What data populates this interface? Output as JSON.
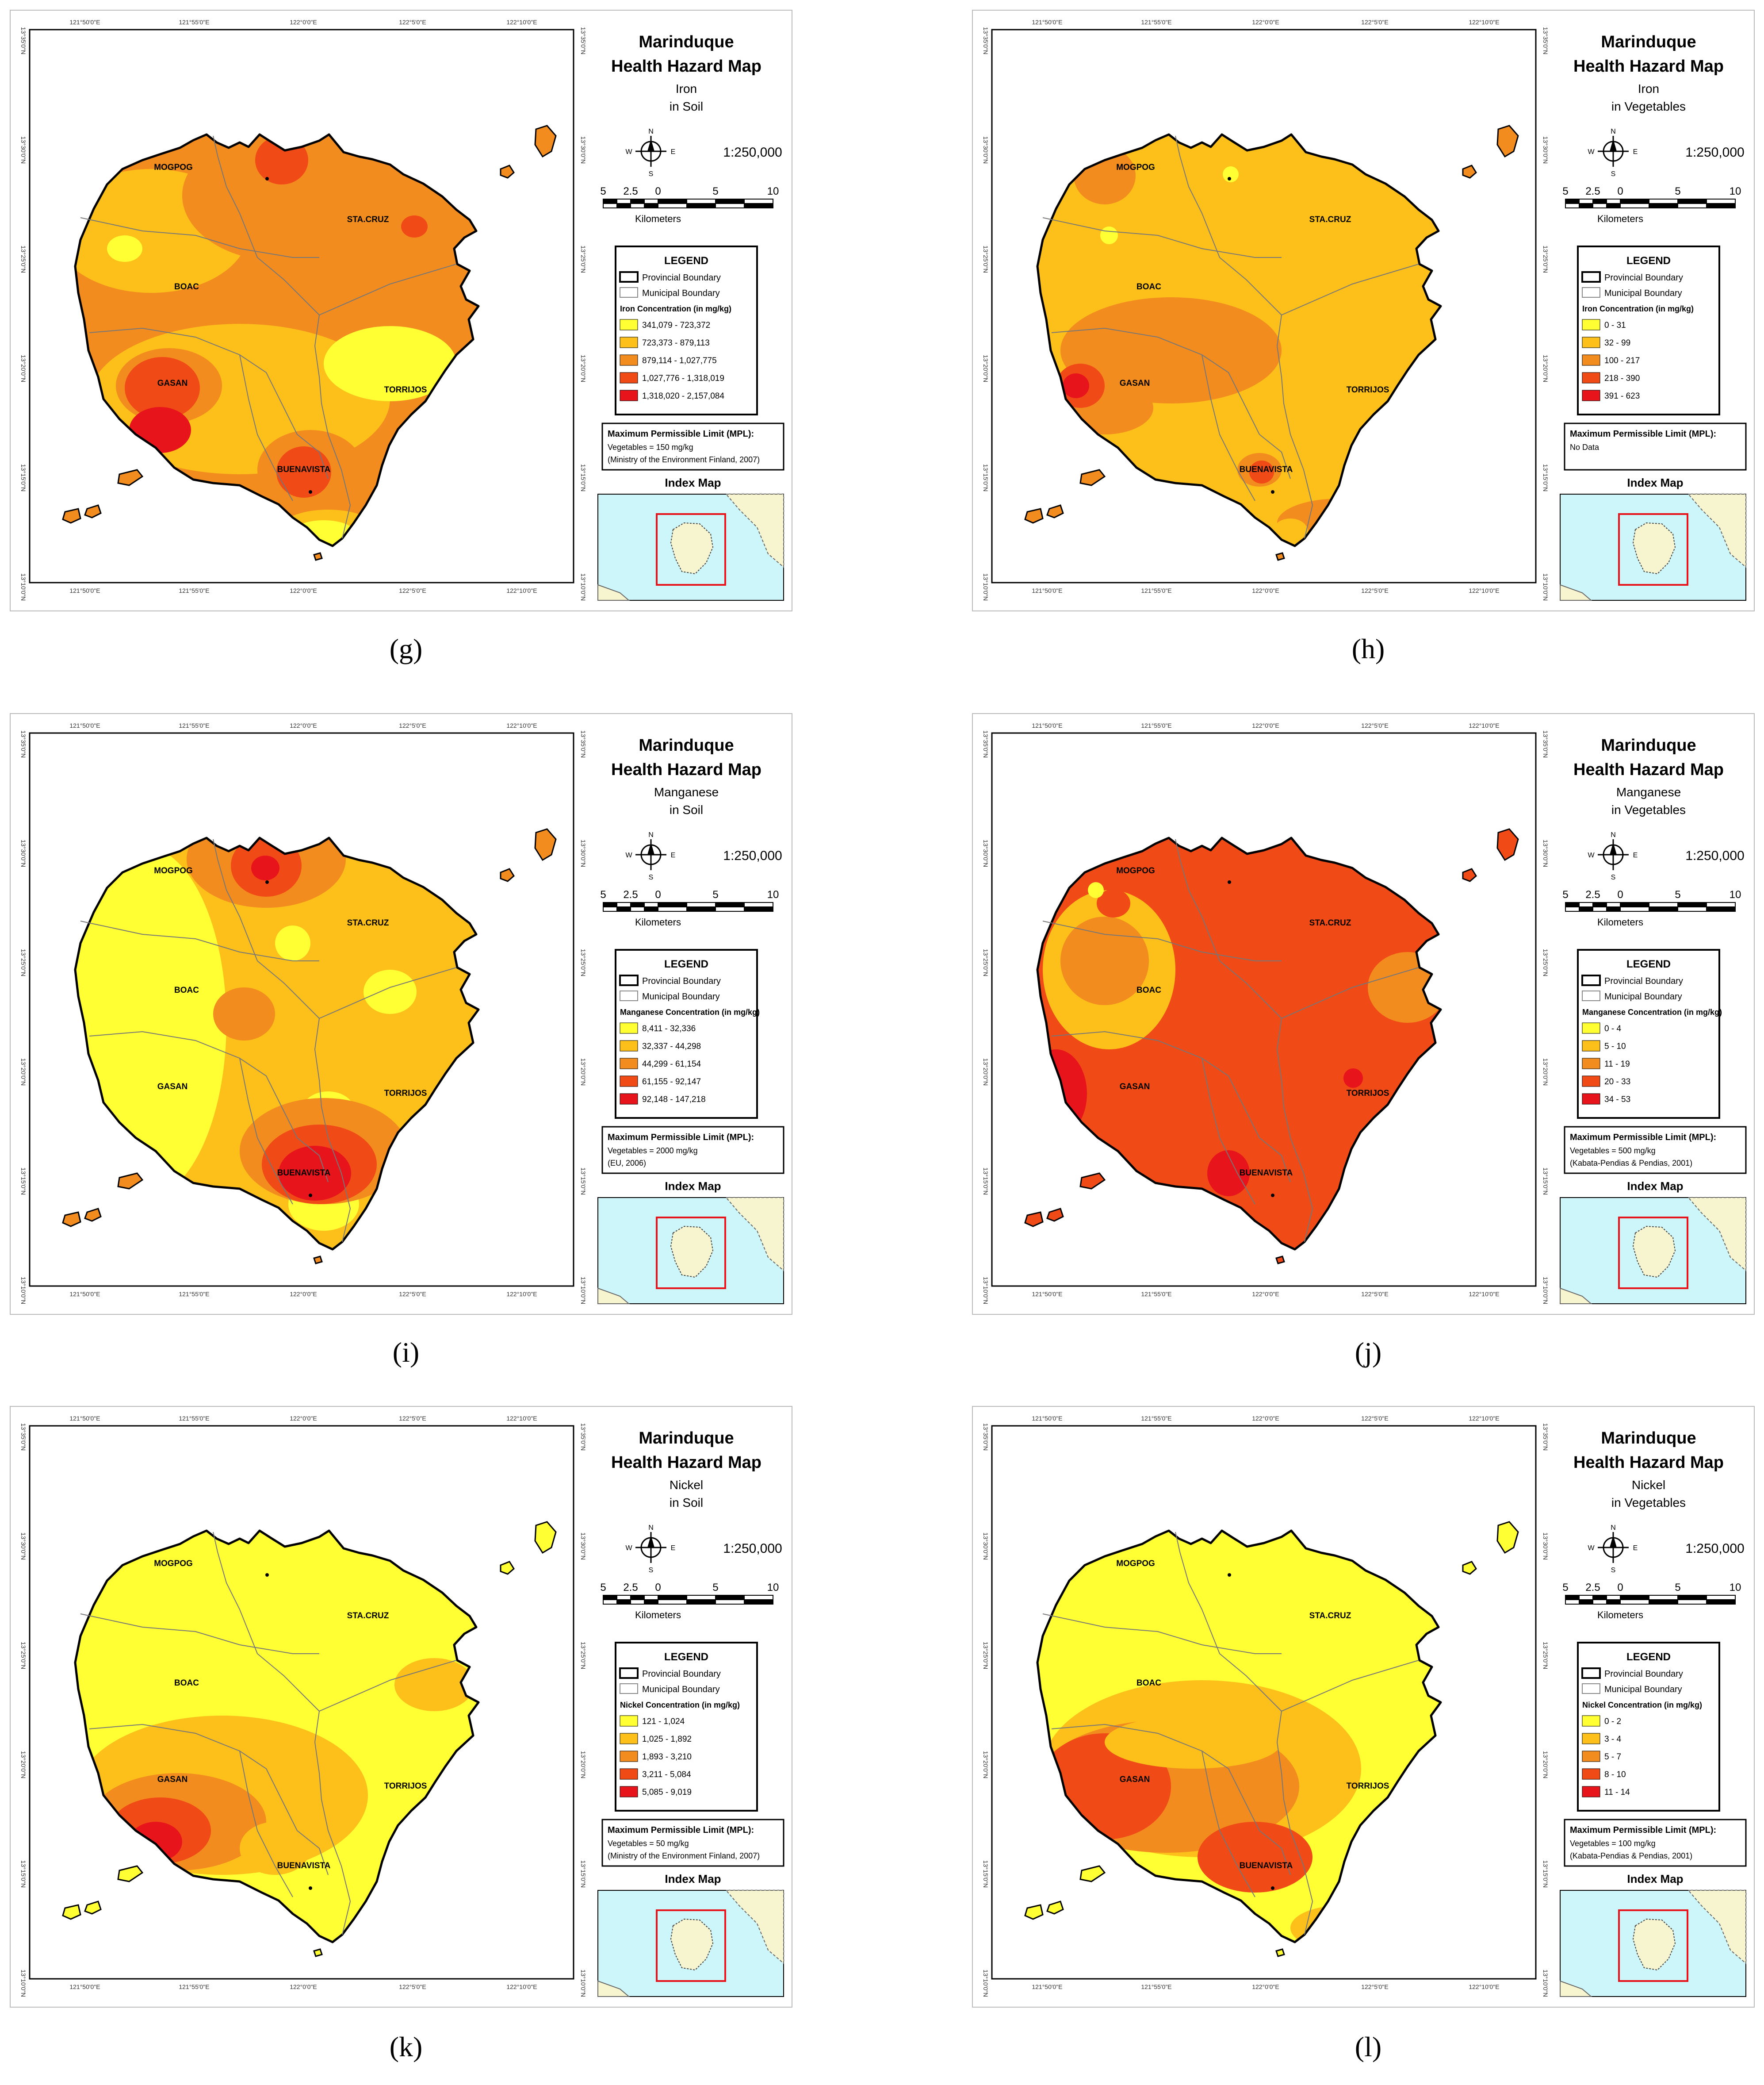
{
  "common": {
    "title_line1": "Marinduque",
    "title_line2": "Health Hazard Map",
    "scale_ratio": "1:250,000",
    "scale_ticks": [
      "5",
      "2.5",
      "0",
      "5",
      "10"
    ],
    "scale_unit": "Kilometers",
    "legend_title": "LEGEND",
    "provincial_boundary": "Provincial Boundary",
    "municipal_boundary": "Municipal Boundary",
    "mpl_title": "Maximum Permissible Limit (MPL):",
    "index_map_title": "Index Map",
    "compass": {
      "n": "N",
      "s": "S",
      "e": "E",
      "w": "W"
    },
    "top_ticks": [
      "121°50'0\"E",
      "121°55'0\"E",
      "122°0'0\"E",
      "122°5'0\"E",
      "122°10'0\"E"
    ],
    "side_ticks": [
      "13°35'0\"N",
      "13°30'0\"N",
      "13°25'0\"N",
      "13°20'0\"N",
      "13°15'0\"N",
      "13°10'0\"N"
    ],
    "towns": [
      "MOGPOG",
      "STA.CRUZ",
      "BOAC",
      "GASAN",
      "TORRIJOS",
      "BUENAVISTA"
    ],
    "legend_colors": [
      "#ffff33",
      "#fdbf1a",
      "#f28c1e",
      "#f04a16",
      "#e8141c"
    ]
  },
  "panels": [
    {
      "caption": "(g)",
      "element": "Iron",
      "medium": "in Soil",
      "legend_heading": "Iron Concentration (in mg/kg)",
      "classes": [
        "341,079 - 723,372",
        "723,373 - 879,113",
        "879,114 - 1,027,775",
        "1,027,776 - 1,318,019",
        "1,318,020 - 2,157,084"
      ],
      "mpl_lines": [
        "Vegetables = 150 mg/kg",
        "(Ministry of the Environment Finland, 2007)"
      ],
      "base_color": "#f28c1e"
    },
    {
      "caption": "(h)",
      "element": "Iron",
      "medium": "in Vegetables",
      "legend_heading": "Iron Concentration (in mg/kg)",
      "classes": [
        "0 - 31",
        "32 - 99",
        "100 - 217",
        "218 - 390",
        "391 - 623"
      ],
      "mpl_lines": [
        "No Data"
      ],
      "base_color": "#fdbf1a"
    },
    {
      "caption": "(i)",
      "element": "Manganese",
      "medium": "in Soil",
      "legend_heading": "Manganese Concentration (in mg/kg)",
      "classes": [
        "8,411 - 32,336",
        "32,337 - 44,298",
        "44,299 - 61,154",
        "61,155 - 92,147",
        "92,148 - 147,218"
      ],
      "mpl_lines": [
        "Vegetables = 2000 mg/kg",
        "(EU, 2006)"
      ],
      "base_color": "#fdbf1a"
    },
    {
      "caption": "(j)",
      "element": "Manganese",
      "medium": "in Vegetables",
      "legend_heading": "Manganese Concentration (in mg/kg)",
      "classes": [
        "0 - 4",
        "5 - 10",
        "11 - 19",
        "20 - 33",
        "34 - 53"
      ],
      "mpl_lines": [
        "Vegetables = 500 mg/kg",
        "(Kabata-Pendias & Pendias, 2001)"
      ],
      "base_color": "#f04a16"
    },
    {
      "caption": "(k)",
      "element": "Nickel",
      "medium": "in Soil",
      "legend_heading": "Nickel Concentration (in mg/kg)",
      "classes": [
        "121 - 1,024",
        "1,025 - 1,892",
        "1,893 - 3,210",
        "3,211 - 5,084",
        "5,085 - 9,019"
      ],
      "mpl_lines": [
        "Vegetables = 50 mg/kg",
        "(Ministry of the Environment Finland, 2007)"
      ],
      "base_color": "#ffff33"
    },
    {
      "caption": "(l)",
      "element": "Nickel",
      "medium": "in Vegetables",
      "legend_heading": "Nickel Concentration (in mg/kg)",
      "classes": [
        "0 - 2",
        "3 - 4",
        "5 - 7",
        "8 - 10",
        "11 - 14"
      ],
      "mpl_lines": [
        "Vegetables = 100 mg/kg",
        "(Kabata-Pendias & Pendias, 2001)"
      ],
      "base_color": "#ffff33"
    }
  ]
}
